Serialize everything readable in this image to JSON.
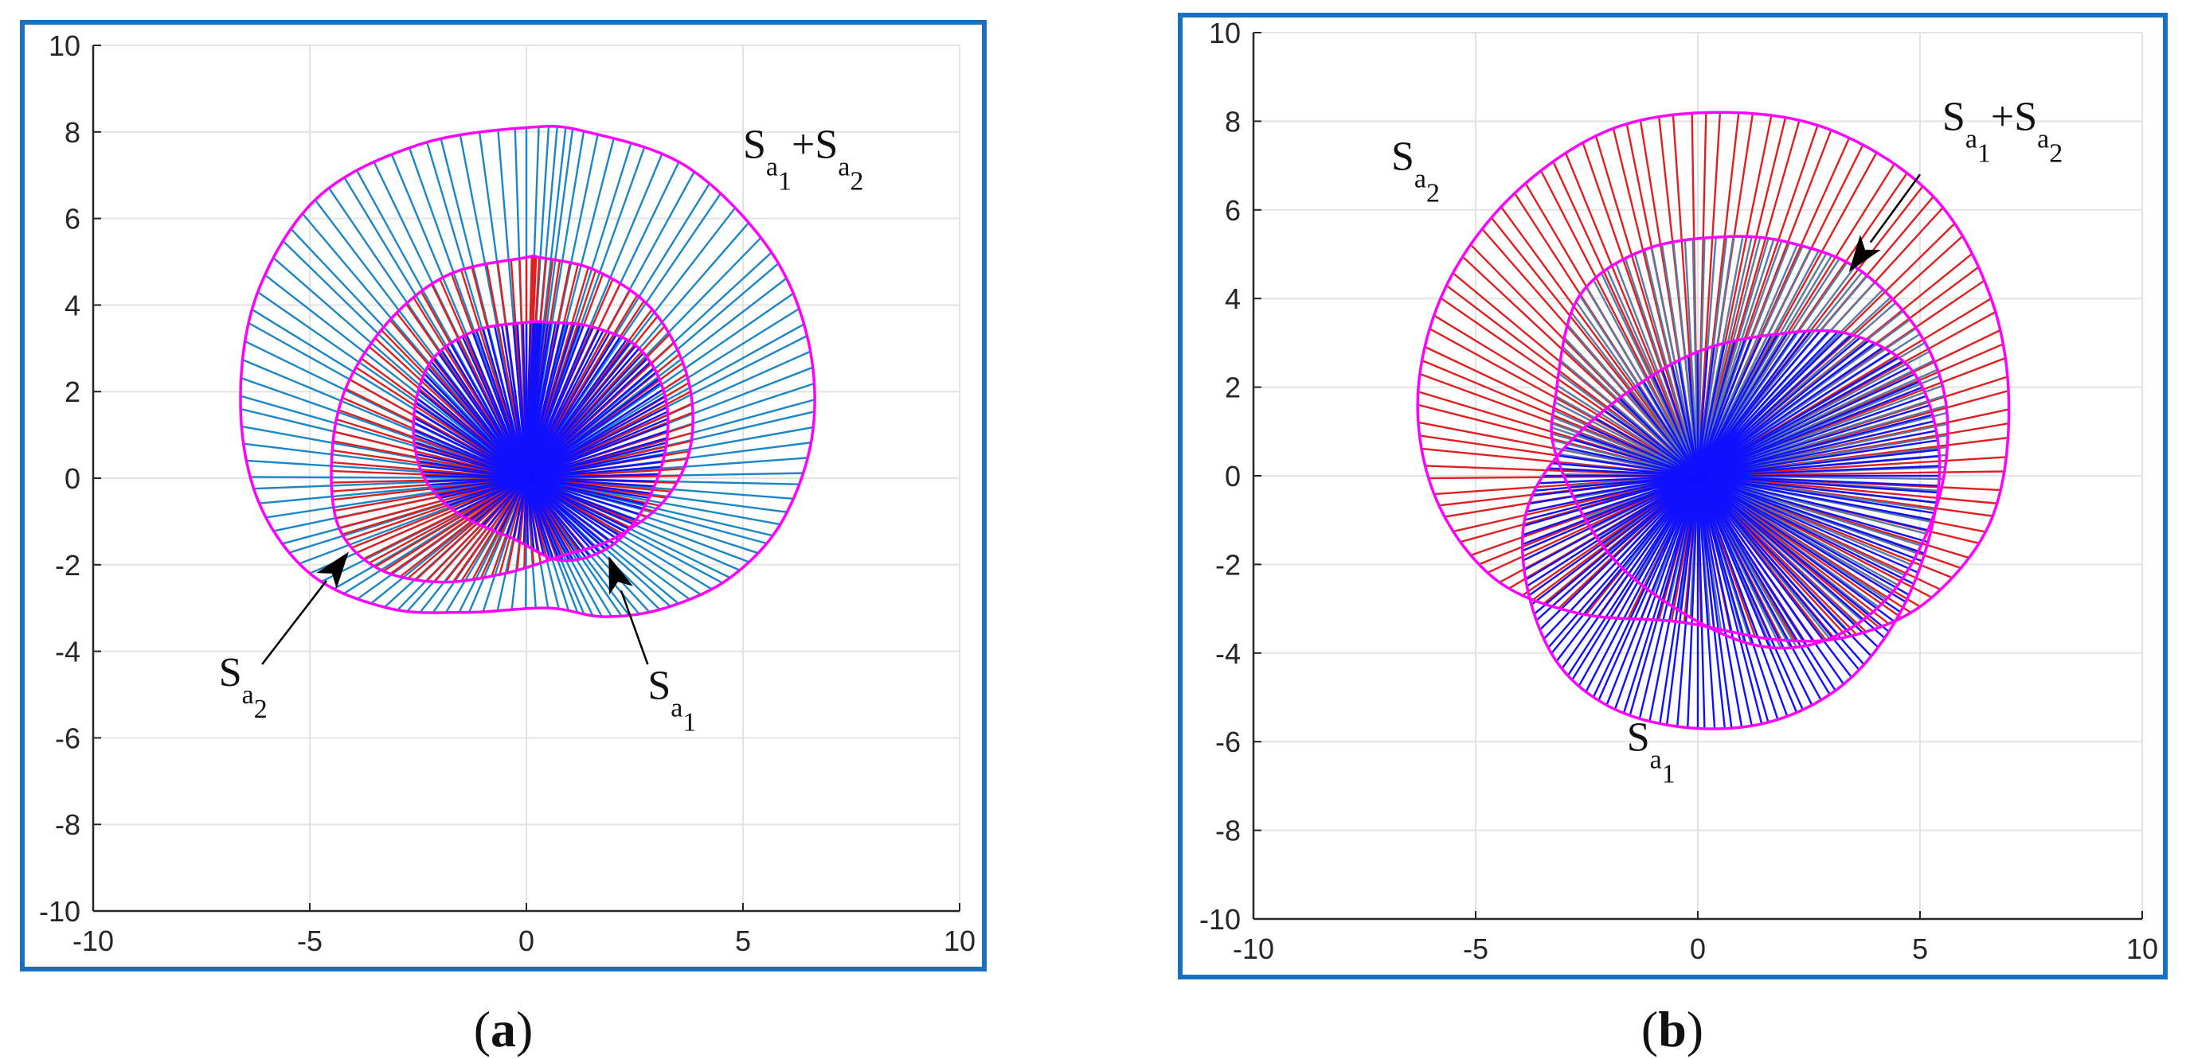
{
  "chart_data": [
    {
      "type": "line",
      "caption": {
        "open": "(",
        "letter": "a",
        "close": ")"
      },
      "xlim": [
        -10,
        10
      ],
      "ylim": [
        -10,
        10
      ],
      "xticks": [
        -10,
        -5,
        0,
        5,
        10
      ],
      "yticks": [
        10,
        8,
        6,
        4,
        2,
        0,
        -2,
        -4,
        -6,
        -8,
        -10
      ],
      "grid": true,
      "series": [
        {
          "key": "sum",
          "rays": 120,
          "ray_color": "#1a86c8",
          "boundary_color": "#ff00ff",
          "boundary": [
            [
              0,
              8.1
            ],
            [
              -2.5,
              7.7
            ],
            [
              -4.8,
              6.5
            ],
            [
              -6.2,
              4.3
            ],
            [
              -6.6,
              1.8
            ],
            [
              -6.2,
              -0.5
            ],
            [
              -5.0,
              -2.2
            ],
            [
              -3.2,
              -3.0
            ],
            [
              -1.4,
              -3.1
            ],
            [
              0.5,
              -3.0
            ],
            [
              1.8,
              -3.2
            ],
            [
              3.2,
              -3.0
            ],
            [
              4.7,
              -2.3
            ],
            [
              5.9,
              -1.0
            ],
            [
              6.6,
              1.0
            ],
            [
              6.5,
              3.2
            ],
            [
              5.6,
              5.3
            ],
            [
              3.7,
              7.2
            ],
            [
              1.4,
              8.0
            ]
          ]
        },
        {
          "key": "sa2",
          "rays": 120,
          "ray_color": "#e02020",
          "boundary_color": "#ff00ff",
          "boundary": [
            [
              0,
              5.1
            ],
            [
              -1.8,
              4.7
            ],
            [
              -3.2,
              3.6
            ],
            [
              -4.2,
              2.0
            ],
            [
              -4.5,
              0.3
            ],
            [
              -4.3,
              -1.2
            ],
            [
              -3.4,
              -2.1
            ],
            [
              -2.0,
              -2.4
            ],
            [
              -0.5,
              -2.2
            ],
            [
              0.8,
              -1.8
            ],
            [
              2.0,
              -1.4
            ],
            [
              3.2,
              -0.5
            ],
            [
              3.8,
              0.8
            ],
            [
              3.7,
              2.4
            ],
            [
              2.9,
              3.9
            ],
            [
              1.6,
              4.8
            ],
            [
              0.3,
              5.1
            ]
          ]
        },
        {
          "key": "sa1",
          "rays": 140,
          "ray_color": "#1010ff",
          "boundary_color": "#ff00ff",
          "boundary": [
            [
              0,
              3.6
            ],
            [
              -1.2,
              3.4
            ],
            [
              -2.2,
              2.7
            ],
            [
              -2.6,
              1.4
            ],
            [
              -2.4,
              0.1
            ],
            [
              -1.6,
              -0.8
            ],
            [
              -0.3,
              -1.4
            ],
            [
              0.8,
              -1.9
            ],
            [
              1.9,
              -1.6
            ],
            [
              2.7,
              -0.7
            ],
            [
              3.2,
              0.6
            ],
            [
              3.2,
              1.9
            ],
            [
              2.6,
              3.0
            ],
            [
              1.5,
              3.5
            ],
            [
              0.5,
              3.6
            ]
          ]
        }
      ],
      "annotations": [
        {
          "base": "S",
          "sub": "a",
          "subsub": "1",
          "plus": "+S",
          "sub2": "a",
          "subsub2": "2",
          "anchor": [
            5,
            7.4
          ]
        },
        {
          "base": "S",
          "sub": "a",
          "subsub": "2",
          "anchor": [
            -7.1,
            -4.8
          ]
        },
        {
          "base": "S",
          "sub": "a",
          "subsub": "1",
          "anchor": [
            2.8,
            -5.1
          ]
        }
      ],
      "arrows": [
        {
          "from": [
            -6.1,
            -4.3
          ],
          "to": [
            -4.1,
            -1.7
          ]
        },
        {
          "from": [
            2.8,
            -4.3
          ],
          "to": [
            1.9,
            -1.8
          ]
        }
      ]
    },
    {
      "type": "line",
      "caption": {
        "open": "(",
        "letter": "b",
        "close": ")"
      },
      "xlim": [
        -10,
        10
      ],
      "ylim": [
        -10,
        10
      ],
      "xticks": [
        -10,
        -5,
        0,
        5,
        10
      ],
      "yticks": [
        10,
        8,
        6,
        4,
        2,
        0,
        -2,
        -4,
        -6,
        -8,
        -10
      ],
      "grid": true,
      "series": [
        {
          "key": "sa2",
          "rays": 120,
          "ray_color": "#e02020",
          "boundary_color": "#ff00ff",
          "boundary": [
            [
              0.5,
              8.2
            ],
            [
              -2.0,
              7.8
            ],
            [
              -4.2,
              6.3
            ],
            [
              -5.7,
              4.2
            ],
            [
              -6.3,
              1.8
            ],
            [
              -5.9,
              -0.5
            ],
            [
              -4.6,
              -2.3
            ],
            [
              -2.7,
              -3.1
            ],
            [
              -0.4,
              -3.3
            ],
            [
              1.8,
              -3.7
            ],
            [
              3.5,
              -3.6
            ],
            [
              5.2,
              -2.8
            ],
            [
              6.6,
              -1.0
            ],
            [
              7.0,
              1.5
            ],
            [
              6.6,
              4.0
            ],
            [
              5.3,
              6.3
            ],
            [
              3.0,
              7.8
            ]
          ]
        },
        {
          "key": "sum",
          "rays": 130,
          "ray_color": "#5a7aa5",
          "boundary_color": "#ff00ff",
          "boundary": [
            [
              0.8,
              5.4
            ],
            [
              -1.2,
              5.1
            ],
            [
              -2.7,
              4.0
            ],
            [
              -3.2,
              1.8
            ],
            [
              -3.2,
              0.5
            ],
            [
              -2.2,
              -1.5
            ],
            [
              -0.8,
              -2.8
            ],
            [
              1.2,
              -3.8
            ],
            [
              2.9,
              -3.7
            ],
            [
              4.4,
              -2.6
            ],
            [
              5.4,
              -0.6
            ],
            [
              5.6,
              1.5
            ],
            [
              5.0,
              3.2
            ],
            [
              3.7,
              4.6
            ],
            [
              2.3,
              5.2
            ]
          ]
        },
        {
          "key": "sa1",
          "rays": 140,
          "ray_color": "#1010ff",
          "boundary_color": "#ff00ff",
          "boundary": [
            [
              1.8,
              3.2
            ],
            [
              0,
              2.8
            ],
            [
              -1.7,
              1.8
            ],
            [
              -3.2,
              0.4
            ],
            [
              -3.9,
              -1.0
            ],
            [
              -3.8,
              -2.7
            ],
            [
              -3.1,
              -4.3
            ],
            [
              -1.8,
              -5.3
            ],
            [
              0,
              -5.7
            ],
            [
              1.8,
              -5.5
            ],
            [
              3.4,
              -4.6
            ],
            [
              4.6,
              -3.0
            ],
            [
              5.3,
              -1.0
            ],
            [
              5.4,
              0.8
            ],
            [
              4.8,
              2.4
            ],
            [
              3.4,
              3.2
            ]
          ]
        }
      ],
      "annotations": [
        {
          "base": "S",
          "sub": "a",
          "subsub": "2",
          "anchor": [
            -6.9,
            6.9
          ]
        },
        {
          "base": "S",
          "sub": "a",
          "subsub": "1",
          "plus": "+S",
          "sub2": "a",
          "subsub2": "2",
          "anchor": [
            5.5,
            7.8
          ]
        },
        {
          "base": "S",
          "sub": "a",
          "subsub": "1",
          "anchor": [
            -1.6,
            -6.2
          ]
        }
      ],
      "arrows": [
        {
          "from": [
            5.0,
            6.8
          ],
          "to": [
            3.4,
            4.6
          ]
        }
      ]
    }
  ],
  "frame_color": "#1a6fbf",
  "axis_color": "#262626",
  "grid_color": "#e3e3e3"
}
